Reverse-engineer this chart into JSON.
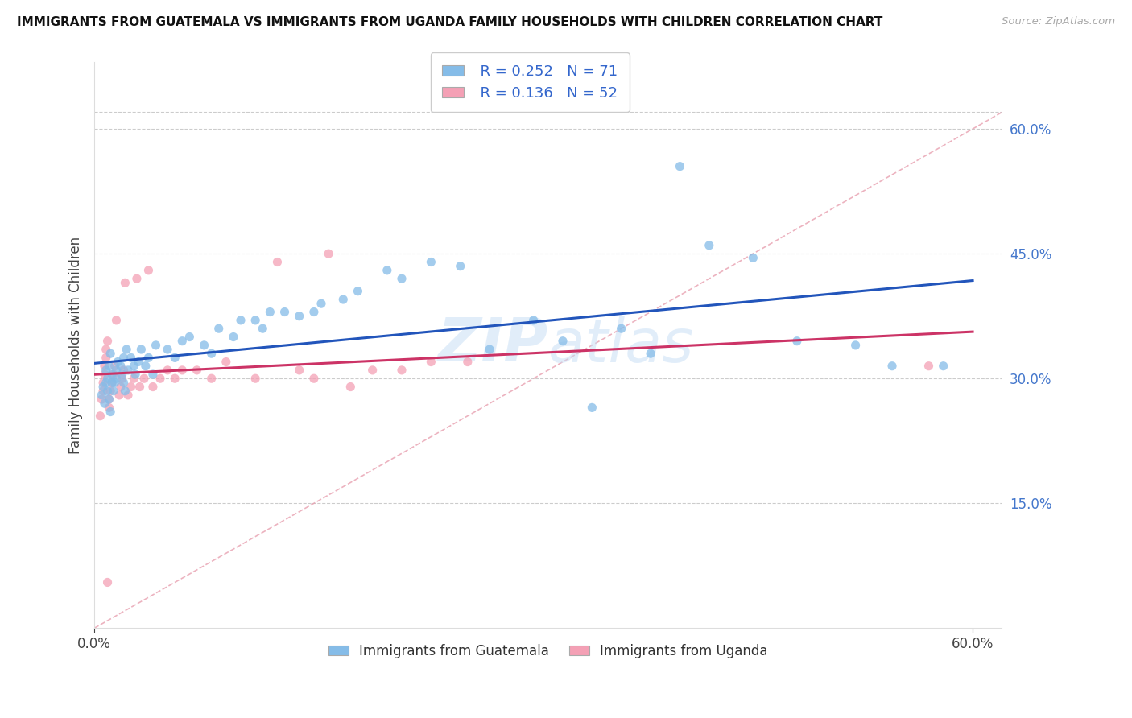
{
  "title": "IMMIGRANTS FROM GUATEMALA VS IMMIGRANTS FROM UGANDA FAMILY HOUSEHOLDS WITH CHILDREN CORRELATION CHART",
  "source": "Source: ZipAtlas.com",
  "ylabel": "Family Households with Children",
  "xlim": [
    0.0,
    0.62
  ],
  "ylim": [
    0.0,
    0.68
  ],
  "ytick_right_values": [
    0.15,
    0.3,
    0.45,
    0.6
  ],
  "xtick_vals": [
    0.0,
    0.6
  ],
  "xtick_labels": [
    "0.0%",
    "60.0%"
  ],
  "grid_color": "#cccccc",
  "color_guatemala": "#85bce8",
  "color_uganda": "#f4a0b5",
  "line_color_guatemala": "#2255bb",
  "line_color_uganda": "#cc3366",
  "scatter_alpha": 0.75,
  "scatter_size": 65,
  "R_guatemala": 0.252,
  "N_guatemala": 71,
  "R_uganda": 0.136,
  "N_uganda": 52,
  "guatemala_x": [
    0.005,
    0.006,
    0.007,
    0.008,
    0.008,
    0.009,
    0.009,
    0.01,
    0.01,
    0.011,
    0.011,
    0.012,
    0.012,
    0.013,
    0.014,
    0.015,
    0.015,
    0.016,
    0.018,
    0.019,
    0.02,
    0.02,
    0.021,
    0.022,
    0.023,
    0.025,
    0.027,
    0.028,
    0.03,
    0.032,
    0.035,
    0.037,
    0.04,
    0.042,
    0.05,
    0.055,
    0.06,
    0.065,
    0.075,
    0.08,
    0.085,
    0.095,
    0.1,
    0.11,
    0.115,
    0.12,
    0.13,
    0.14,
    0.15,
    0.155,
    0.17,
    0.18,
    0.2,
    0.21,
    0.23,
    0.25,
    0.27,
    0.3,
    0.32,
    0.34,
    0.36,
    0.38,
    0.4,
    0.42,
    0.45,
    0.48,
    0.52,
    0.545,
    0.58
  ],
  "guatemala_y": [
    0.28,
    0.29,
    0.27,
    0.31,
    0.295,
    0.285,
    0.3,
    0.275,
    0.315,
    0.26,
    0.33,
    0.295,
    0.305,
    0.285,
    0.295,
    0.3,
    0.31,
    0.32,
    0.315,
    0.305,
    0.295,
    0.325,
    0.285,
    0.335,
    0.31,
    0.325,
    0.315,
    0.305,
    0.32,
    0.335,
    0.315,
    0.325,
    0.305,
    0.34,
    0.335,
    0.325,
    0.345,
    0.35,
    0.34,
    0.33,
    0.36,
    0.35,
    0.37,
    0.37,
    0.36,
    0.38,
    0.38,
    0.375,
    0.38,
    0.39,
    0.395,
    0.405,
    0.43,
    0.42,
    0.44,
    0.435,
    0.335,
    0.37,
    0.345,
    0.265,
    0.36,
    0.33,
    0.555,
    0.46,
    0.445,
    0.345,
    0.34,
    0.315,
    0.315
  ],
  "uganda_x": [
    0.004,
    0.005,
    0.006,
    0.006,
    0.007,
    0.007,
    0.008,
    0.008,
    0.009,
    0.009,
    0.01,
    0.01,
    0.011,
    0.012,
    0.013,
    0.014,
    0.015,
    0.017,
    0.018,
    0.019,
    0.02,
    0.021,
    0.023,
    0.025,
    0.027,
    0.029,
    0.031,
    0.034,
    0.037,
    0.04,
    0.045,
    0.05,
    0.055,
    0.06,
    0.07,
    0.08,
    0.09,
    0.11,
    0.125,
    0.14,
    0.15,
    0.16,
    0.175,
    0.19,
    0.21,
    0.23,
    0.255,
    0.57
  ],
  "uganda_y": [
    0.255,
    0.275,
    0.285,
    0.295,
    0.305,
    0.315,
    0.325,
    0.335,
    0.345,
    0.055,
    0.265,
    0.275,
    0.285,
    0.295,
    0.305,
    0.315,
    0.37,
    0.28,
    0.29,
    0.3,
    0.31,
    0.415,
    0.28,
    0.29,
    0.3,
    0.42,
    0.29,
    0.3,
    0.43,
    0.29,
    0.3,
    0.31,
    0.3,
    0.31,
    0.31,
    0.3,
    0.32,
    0.3,
    0.44,
    0.31,
    0.3,
    0.45,
    0.29,
    0.31,
    0.31,
    0.32,
    0.32,
    0.315
  ]
}
